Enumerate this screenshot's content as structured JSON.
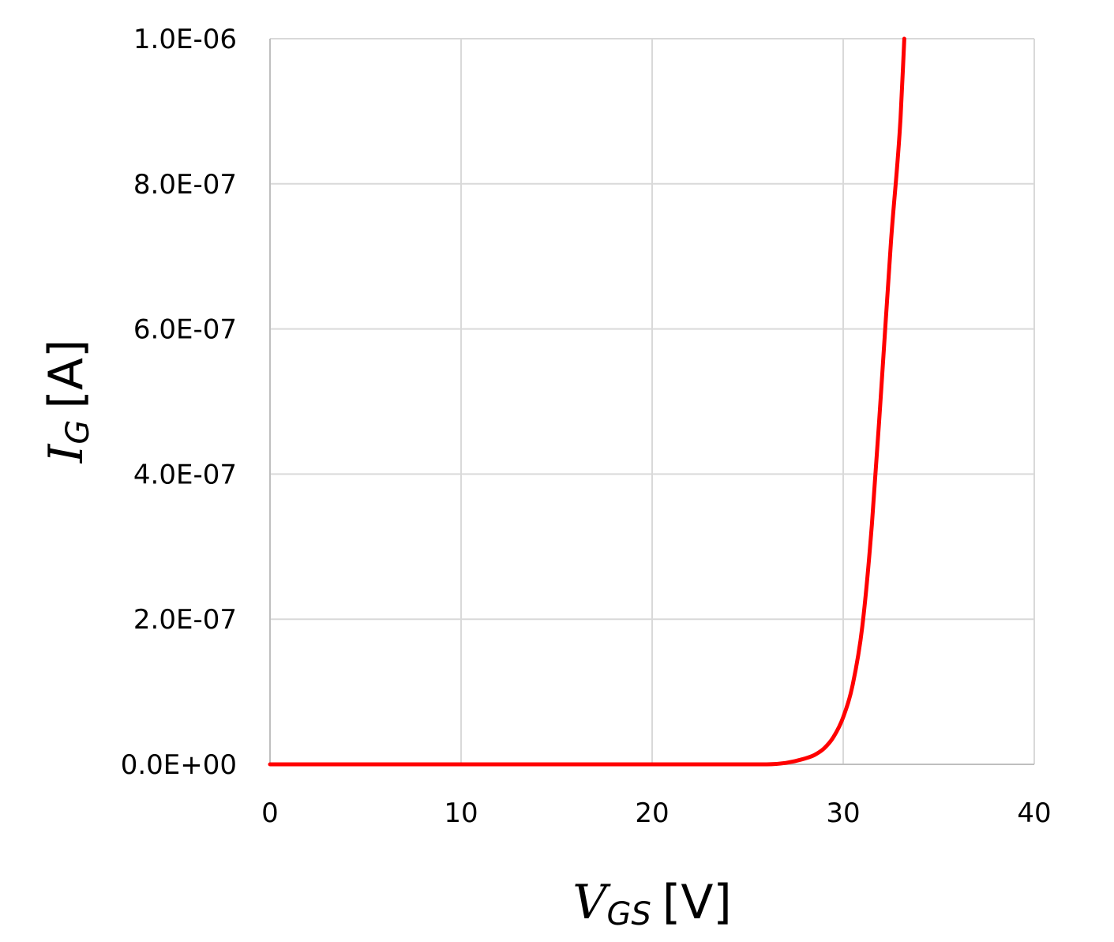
{
  "chart_data": {
    "type": "line",
    "xlabel": {
      "symbol": "V",
      "subscript": "GS",
      "unit": "[V]"
    },
    "ylabel": {
      "symbol": "I",
      "subscript": "G",
      "unit": "[A]"
    },
    "xlim": [
      0,
      40
    ],
    "ylim": [
      0,
      1e-06
    ],
    "x_ticks": [
      "0",
      "10",
      "20",
      "30",
      "40"
    ],
    "y_ticks": [
      "0.0E+00",
      "2.0E-07",
      "4.0E-07",
      "6.0E-07",
      "8.0E-07",
      "1.0E-06"
    ],
    "x_tick_values": [
      0,
      10,
      20,
      30,
      40
    ],
    "y_tick_values": [
      0,
      2e-07,
      4e-07,
      6e-07,
      8e-07,
      1e-06
    ],
    "grid": true,
    "series": [
      {
        "color": "#ff0000",
        "x": [
          0,
          5,
          10,
          15,
          20,
          25,
          26,
          27,
          28,
          28.5,
          29,
          29.5,
          30,
          30.5,
          31,
          31.5,
          32,
          32.5,
          33,
          33.2
        ],
        "y": [
          0,
          0,
          0,
          0,
          0,
          0,
          0.0,
          2e-09,
          8e-09,
          1.3e-08,
          2.2e-08,
          3.8e-08,
          6.5e-08,
          1.1e-07,
          1.9e-07,
          3.3e-07,
          5.2e-07,
          7.2e-07,
          8.9e-07,
          1e-06
        ]
      }
    ]
  }
}
